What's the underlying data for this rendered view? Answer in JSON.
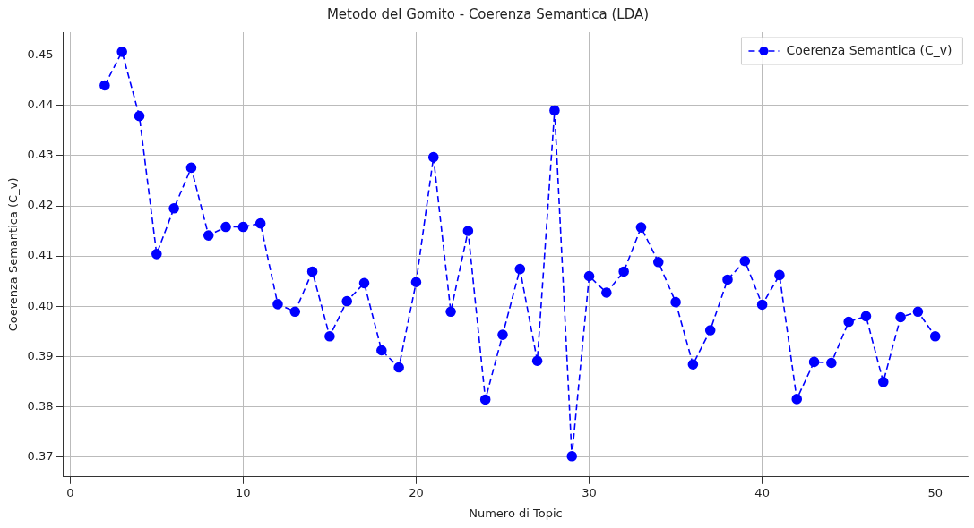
{
  "chart_data": {
    "type": "line",
    "title": "Metodo del Gomito - Coerenza Semantica (LDA)",
    "xlabel": "Numero di Topic",
    "ylabel": "Coerenza Semantica (C_v)",
    "x": [
      2,
      3,
      4,
      5,
      6,
      7,
      8,
      9,
      10,
      11,
      12,
      13,
      14,
      15,
      16,
      17,
      18,
      19,
      20,
      21,
      22,
      23,
      24,
      25,
      26,
      27,
      28,
      29,
      30,
      31,
      32,
      33,
      34,
      35,
      36,
      37,
      38,
      39,
      40,
      41,
      42,
      43,
      44,
      45,
      46,
      47,
      48,
      49,
      50
    ],
    "series": [
      {
        "name": "Coerenza Semantica (C_v)",
        "color": "#0000ff",
        "values": [
          0.444,
          0.4507,
          0.4379,
          0.4104,
          0.4195,
          0.4276,
          0.4141,
          0.4158,
          0.4158,
          0.4165,
          0.4004,
          0.3989,
          0.4069,
          0.394,
          0.401,
          0.4046,
          0.3912,
          0.3878,
          0.4048,
          0.4297,
          0.3989,
          0.415,
          0.3814,
          0.3943,
          0.4074,
          0.3891,
          0.439,
          0.3701,
          0.406,
          0.4027,
          0.4069,
          0.4157,
          0.4088,
          0.4008,
          0.3884,
          0.3952,
          0.4053,
          0.409,
          0.4003,
          0.4062,
          0.3815,
          0.3889,
          0.3887,
          0.3969,
          0.398,
          0.3849,
          0.3978,
          0.3989,
          0.394
        ]
      }
    ],
    "xlim": [
      -0.4,
      51.9
    ],
    "xticks": [
      0,
      10,
      20,
      30,
      40,
      50
    ],
    "ylim": [
      0.366,
      0.4546
    ],
    "yticks": [
      {
        "value": 0.37,
        "label": "0.37"
      },
      {
        "value": 0.38,
        "label": "0.38"
      },
      {
        "value": 0.39,
        "label": "0.39"
      },
      {
        "value": 0.4,
        "label": "0.40"
      },
      {
        "value": 0.41,
        "label": "0.41"
      },
      {
        "value": 0.42,
        "label": "0.42"
      },
      {
        "value": 0.43,
        "label": "0.43"
      },
      {
        "value": 0.44,
        "label": "0.44"
      },
      {
        "value": 0.45,
        "label": "0.45"
      }
    ],
    "grid": true,
    "legend": "top right",
    "marker": "circle",
    "line_style": "dashed"
  }
}
